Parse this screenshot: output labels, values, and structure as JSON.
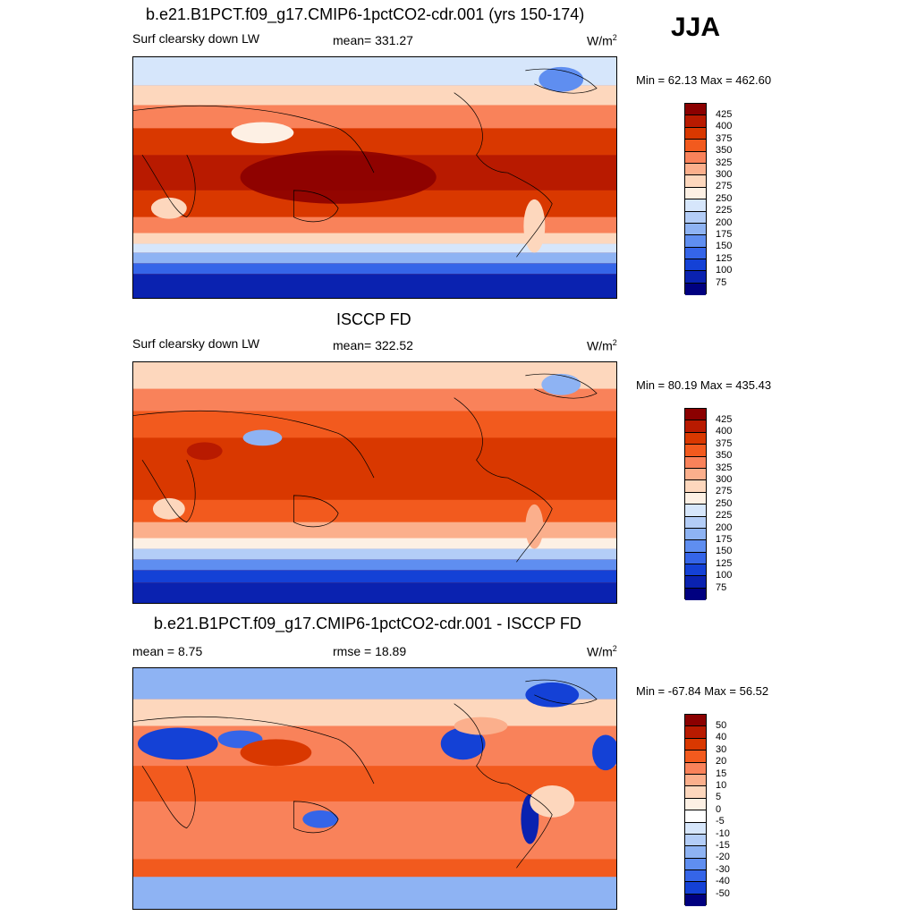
{
  "season": "JJA",
  "panels": [
    {
      "id": "model",
      "title": "b.e21.B1PCT.f09_g17.CMIP6-1pctCO2-cdr.001 (yrs 150-174)",
      "left_label": "Surf clearsky down LW",
      "center_label": "mean= 331.27",
      "units_base": "W/m",
      "units_exp": "2",
      "minmax": "Min =  62.13 Max = 462.60",
      "colorbar_ticks": [
        "425",
        "400",
        "375",
        "350",
        "325",
        "300",
        "275",
        "250",
        "225",
        "200",
        "175",
        "150",
        "125",
        "100",
        "75"
      ]
    },
    {
      "id": "obs",
      "title": "ISCCP FD",
      "left_label": "Surf clearsky down LW",
      "center_label": "mean= 322.52",
      "units_base": "W/m",
      "units_exp": "2",
      "minmax": "Min =  80.19 Max = 435.43",
      "colorbar_ticks": [
        "425",
        "400",
        "375",
        "350",
        "325",
        "300",
        "275",
        "250",
        "225",
        "200",
        "175",
        "150",
        "125",
        "100",
        "75"
      ]
    },
    {
      "id": "diff",
      "title": "b.e21.B1PCT.f09_g17.CMIP6-1pctCO2-cdr.001 - ISCCP FD",
      "left_label": "mean =   8.75",
      "center_label": "rmse =  18.89",
      "units_base": "W/m",
      "units_exp": "2",
      "minmax": "Min = -67.84 Max =  56.52",
      "colorbar_ticks": [
        "50",
        "40",
        "30",
        "20",
        "15",
        "10",
        "5",
        "0",
        "-5",
        "-10",
        "-15",
        "-20",
        "-30",
        "-40",
        "-50"
      ]
    }
  ],
  "colors": {
    "abs_scale": [
      "#8b0000",
      "#b81a00",
      "#d93800",
      "#f25a1e",
      "#f9825a",
      "#fbaf8c",
      "#fdd7bd",
      "#fdf0e4",
      "#d6e6fb",
      "#b3cdf7",
      "#8eb3f3",
      "#5f8ef0",
      "#3565e8",
      "#1441d6",
      "#0a22b0",
      "#000080"
    ],
    "diff_scale": [
      "#8b0000",
      "#b81a00",
      "#d93800",
      "#f25a1e",
      "#f9825a",
      "#fbaf8c",
      "#fdd7bd",
      "#fdf0e4",
      "#ffffff",
      "#d6e6fb",
      "#b3cdf7",
      "#8eb3f3",
      "#5f8ef0",
      "#3565e8",
      "#1441d6",
      "#000080"
    ]
  }
}
